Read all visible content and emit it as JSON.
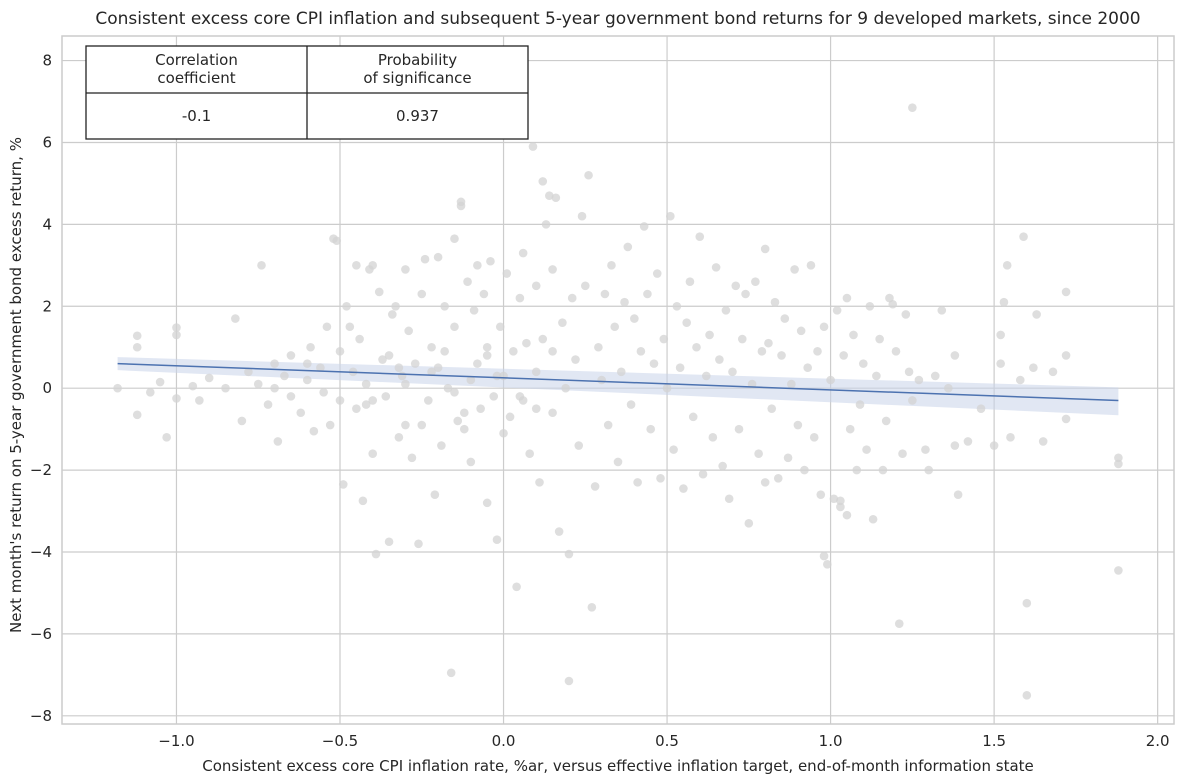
{
  "chart_data": {
    "type": "scatter",
    "title": "Consistent excess core CPI inflation and subsequent 5-year government bond returns for 9 developed markets, since 2000",
    "xlabel": "Consistent excess core CPI inflation rate, %ar, versus effective inflation target, end-of-month information state",
    "ylabel": "Next month's return on 5-year government bond excess return, %",
    "xlim": [
      -1.35,
      2.05
    ],
    "ylim": [
      -8.2,
      8.6
    ],
    "xticks": [
      -1.0,
      -0.5,
      0.0,
      0.5,
      1.0,
      1.5,
      2.0
    ],
    "xtick_labels": [
      "−1.0",
      "−0.5",
      "0.0",
      "0.5",
      "1.0",
      "1.5",
      "2.0"
    ],
    "yticks": [
      -8,
      -6,
      -4,
      -2,
      0,
      2,
      4,
      6,
      8
    ],
    "ytick_labels": [
      "−8",
      "−6",
      "−4",
      "−2",
      "0",
      "2",
      "4",
      "6",
      "8"
    ],
    "grid": true,
    "point_color": "#d3d3d3",
    "line_color": "#4c72b0",
    "ci_color": "#c8d4ea",
    "regression": {
      "x": [
        -1.18,
        1.88
      ],
      "y": [
        0.6,
        -0.3
      ],
      "ci_upper": [
        0.76,
        0.02
      ],
      "ci_lower": [
        0.44,
        -0.66
      ]
    },
    "stats_table": {
      "headers": [
        "Correlation\ncoefficient",
        "Probability\nof significance"
      ],
      "values": [
        "-0.1",
        "0.937"
      ]
    },
    "points": [
      [
        -1.18,
        0.0
      ],
      [
        -1.12,
        1.28
      ],
      [
        -1.12,
        1.0
      ],
      [
        -1.12,
        -0.65
      ],
      [
        -1.08,
        -0.1
      ],
      [
        -1.05,
        0.15
      ],
      [
        -1.03,
        -1.2
      ],
      [
        -1.0,
        1.48
      ],
      [
        -1.0,
        1.3
      ],
      [
        -1.0,
        -0.25
      ],
      [
        -0.95,
        0.05
      ],
      [
        -0.93,
        -0.3
      ],
      [
        -0.9,
        0.25
      ],
      [
        -0.85,
        0.0
      ],
      [
        -0.82,
        1.7
      ],
      [
        -0.8,
        -0.8
      ],
      [
        -0.78,
        0.4
      ],
      [
        -0.75,
        0.1
      ],
      [
        -0.74,
        3.0
      ],
      [
        -0.72,
        -0.4
      ],
      [
        -0.7,
        0.6
      ],
      [
        -0.69,
        -1.3
      ],
      [
        -0.67,
        0.3
      ],
      [
        -0.65,
        0.8
      ],
      [
        -0.62,
        -0.6
      ],
      [
        -0.6,
        0.2
      ],
      [
        -0.59,
        1.0
      ],
      [
        -0.58,
        -1.05
      ],
      [
        -0.56,
        0.5
      ],
      [
        -0.55,
        -0.1
      ],
      [
        -0.54,
        1.5
      ],
      [
        -0.53,
        -0.9
      ],
      [
        -0.52,
        3.65
      ],
      [
        -0.51,
        3.6
      ],
      [
        -0.5,
        0.9
      ],
      [
        -0.5,
        -0.3
      ],
      [
        -0.49,
        -2.35
      ],
      [
        -0.48,
        2.0
      ],
      [
        -0.47,
        1.5
      ],
      [
        -0.46,
        0.4
      ],
      [
        -0.45,
        3.0
      ],
      [
        -0.45,
        -0.5
      ],
      [
        -0.44,
        1.2
      ],
      [
        -0.43,
        -2.75
      ],
      [
        -0.42,
        0.1
      ],
      [
        -0.41,
        2.9
      ],
      [
        -0.4,
        3.0
      ],
      [
        -0.4,
        -1.6
      ],
      [
        -0.39,
        -4.05
      ],
      [
        -0.38,
        2.35
      ],
      [
        -0.37,
        0.7
      ],
      [
        -0.36,
        -0.2
      ],
      [
        -0.35,
        -3.75
      ],
      [
        -0.34,
        1.8
      ],
      [
        -0.33,
        2.0
      ],
      [
        -0.32,
        -1.2
      ],
      [
        -0.31,
        0.3
      ],
      [
        -0.3,
        -0.9
      ],
      [
        -0.3,
        2.9
      ],
      [
        -0.29,
        1.4
      ],
      [
        -0.28,
        -1.7
      ],
      [
        -0.27,
        0.6
      ],
      [
        -0.26,
        -3.8
      ],
      [
        -0.25,
        2.3
      ],
      [
        -0.24,
        3.15
      ],
      [
        -0.23,
        -0.3
      ],
      [
        -0.22,
        1.0
      ],
      [
        -0.21,
        -2.6
      ],
      [
        -0.2,
        3.2
      ],
      [
        -0.2,
        0.5
      ],
      [
        -0.19,
        -1.4
      ],
      [
        -0.18,
        2.0
      ],
      [
        -0.17,
        0.0
      ],
      [
        -0.16,
        -6.95
      ],
      [
        -0.15,
        3.65
      ],
      [
        -0.15,
        1.5
      ],
      [
        -0.14,
        -0.8
      ],
      [
        -0.13,
        4.55
      ],
      [
        -0.13,
        4.45
      ],
      [
        -0.12,
        -1.0
      ],
      [
        -0.11,
        2.6
      ],
      [
        -0.1,
        0.2
      ],
      [
        -0.1,
        -1.8
      ],
      [
        -0.09,
        1.9
      ],
      [
        -0.08,
        3.0
      ],
      [
        -0.07,
        -0.5
      ],
      [
        -0.06,
        2.3
      ],
      [
        -0.05,
        -2.8
      ],
      [
        -0.05,
        0.8
      ],
      [
        -0.04,
        3.1
      ],
      [
        -0.03,
        -0.2
      ],
      [
        -0.02,
        -3.7
      ],
      [
        -0.01,
        1.5
      ],
      [
        0.0,
        0.3
      ],
      [
        0.0,
        -1.1
      ],
      [
        0.01,
        2.8
      ],
      [
        0.02,
        -0.7
      ],
      [
        0.03,
        0.9
      ],
      [
        0.04,
        -4.85
      ],
      [
        0.05,
        2.2
      ],
      [
        0.06,
        3.3
      ],
      [
        0.06,
        -0.3
      ],
      [
        0.07,
        1.1
      ],
      [
        0.08,
        -1.6
      ],
      [
        0.09,
        5.9
      ],
      [
        0.1,
        0.4
      ],
      [
        0.1,
        2.5
      ],
      [
        0.11,
        -2.3
      ],
      [
        0.12,
        5.05
      ],
      [
        0.12,
        1.2
      ],
      [
        0.13,
        4.0
      ],
      [
        0.14,
        4.7
      ],
      [
        0.15,
        -0.6
      ],
      [
        0.15,
        2.9
      ],
      [
        0.16,
        4.65
      ],
      [
        0.17,
        -3.5
      ],
      [
        0.18,
        1.6
      ],
      [
        0.19,
        0.0
      ],
      [
        0.2,
        -4.05
      ],
      [
        0.2,
        -7.15
      ],
      [
        0.21,
        2.2
      ],
      [
        0.22,
        0.7
      ],
      [
        0.23,
        -1.4
      ],
      [
        0.24,
        4.2
      ],
      [
        0.25,
        2.5
      ],
      [
        0.26,
        5.2
      ],
      [
        0.27,
        -5.35
      ],
      [
        0.28,
        -2.4
      ],
      [
        0.29,
        1.0
      ],
      [
        0.3,
        0.2
      ],
      [
        0.31,
        2.3
      ],
      [
        0.32,
        -0.9
      ],
      [
        0.33,
        3.0
      ],
      [
        0.34,
        1.5
      ],
      [
        0.35,
        -1.8
      ],
      [
        0.36,
        0.4
      ],
      [
        0.37,
        2.1
      ],
      [
        0.38,
        3.45
      ],
      [
        0.39,
        -0.4
      ],
      [
        0.4,
        1.7
      ],
      [
        0.41,
        -2.3
      ],
      [
        0.42,
        0.9
      ],
      [
        0.43,
        3.95
      ],
      [
        0.44,
        2.3
      ],
      [
        0.45,
        -1.0
      ],
      [
        0.46,
        0.6
      ],
      [
        0.47,
        2.8
      ],
      [
        0.48,
        -2.2
      ],
      [
        0.49,
        1.2
      ],
      [
        0.5,
        0.0
      ],
      [
        0.51,
        4.2
      ],
      [
        0.52,
        -1.5
      ],
      [
        0.53,
        2.0
      ],
      [
        0.54,
        0.5
      ],
      [
        0.55,
        -2.45
      ],
      [
        0.56,
        1.6
      ],
      [
        0.57,
        2.6
      ],
      [
        0.58,
        -0.7
      ],
      [
        0.59,
        1.0
      ],
      [
        0.6,
        3.7
      ],
      [
        0.61,
        -2.1
      ],
      [
        0.62,
        0.3
      ],
      [
        0.63,
        1.3
      ],
      [
        0.64,
        -1.2
      ],
      [
        0.65,
        2.95
      ],
      [
        0.66,
        0.7
      ],
      [
        0.67,
        -1.9
      ],
      [
        0.68,
        1.9
      ],
      [
        0.69,
        -2.7
      ],
      [
        0.7,
        0.4
      ],
      [
        0.71,
        2.5
      ],
      [
        0.72,
        -1.0
      ],
      [
        0.73,
        1.2
      ],
      [
        0.74,
        2.3
      ],
      [
        0.75,
        -3.3
      ],
      [
        0.76,
        0.1
      ],
      [
        0.77,
        2.6
      ],
      [
        0.78,
        -1.6
      ],
      [
        0.79,
        0.9
      ],
      [
        0.8,
        3.4
      ],
      [
        0.8,
        -2.3
      ],
      [
        0.81,
        1.1
      ],
      [
        0.82,
        -0.5
      ],
      [
        0.83,
        2.1
      ],
      [
        0.84,
        -2.2
      ],
      [
        0.85,
        0.8
      ],
      [
        0.86,
        1.7
      ],
      [
        0.87,
        -1.7
      ],
      [
        0.88,
        0.1
      ],
      [
        0.89,
        2.9
      ],
      [
        0.9,
        -0.9
      ],
      [
        0.91,
        1.4
      ],
      [
        0.92,
        -2.0
      ],
      [
        0.93,
        0.5
      ],
      [
        0.94,
        3.0
      ],
      [
        0.95,
        -1.2
      ],
      [
        0.96,
        0.9
      ],
      [
        0.97,
        -2.6
      ],
      [
        0.98,
        1.5
      ],
      [
        0.98,
        -4.1
      ],
      [
        0.99,
        -4.3
      ],
      [
        1.0,
        0.2
      ],
      [
        1.01,
        -2.7
      ],
      [
        1.02,
        1.9
      ],
      [
        1.03,
        -2.75
      ],
      [
        1.03,
        -2.9
      ],
      [
        1.04,
        0.8
      ],
      [
        1.05,
        -3.1
      ],
      [
        1.05,
        2.2
      ],
      [
        1.06,
        -1.0
      ],
      [
        1.07,
        1.3
      ],
      [
        1.08,
        -2.0
      ],
      [
        1.09,
        -0.4
      ],
      [
        1.1,
        0.6
      ],
      [
        1.11,
        -1.5
      ],
      [
        1.12,
        2.0
      ],
      [
        1.13,
        -3.2
      ],
      [
        1.14,
        0.3
      ],
      [
        1.15,
        1.2
      ],
      [
        1.16,
        -2.0
      ],
      [
        1.17,
        -0.8
      ],
      [
        1.18,
        2.2
      ],
      [
        1.19,
        2.05
      ],
      [
        1.2,
        0.9
      ],
      [
        1.21,
        -5.75
      ],
      [
        1.22,
        -1.6
      ],
      [
        1.23,
        1.8
      ],
      [
        1.24,
        0.4
      ],
      [
        1.25,
        -0.3
      ],
      [
        1.25,
        6.85
      ],
      [
        1.27,
        0.2
      ],
      [
        1.29,
        -1.5
      ],
      [
        1.3,
        -2.0
      ],
      [
        1.32,
        0.3
      ],
      [
        1.34,
        1.9
      ],
      [
        1.36,
        0.0
      ],
      [
        1.38,
        -1.4
      ],
      [
        1.38,
        0.8
      ],
      [
        1.39,
        -2.6
      ],
      [
        1.42,
        -1.3
      ],
      [
        1.46,
        -0.5
      ],
      [
        1.5,
        -1.4
      ],
      [
        1.52,
        0.6
      ],
      [
        1.52,
        1.3
      ],
      [
        1.53,
        2.1
      ],
      [
        1.54,
        3.0
      ],
      [
        1.55,
        -1.2
      ],
      [
        1.58,
        0.2
      ],
      [
        1.59,
        3.7
      ],
      [
        1.6,
        -7.5
      ],
      [
        1.6,
        -5.25
      ],
      [
        1.62,
        0.5
      ],
      [
        1.63,
        1.8
      ],
      [
        1.65,
        -1.3
      ],
      [
        1.68,
        0.4
      ],
      [
        1.72,
        0.8
      ],
      [
        1.72,
        2.35
      ],
      [
        1.72,
        -0.75
      ],
      [
        1.88,
        -1.7
      ],
      [
        1.88,
        -1.85
      ],
      [
        1.88,
        -4.45
      ],
      [
        -0.02,
        0.3
      ],
      [
        -0.08,
        0.6
      ],
      [
        -0.15,
        -0.1
      ],
      [
        -0.22,
        0.4
      ],
      [
        -0.3,
        0.1
      ],
      [
        -0.35,
        0.8
      ],
      [
        -0.42,
        -0.4
      ],
      [
        -0.05,
        1.0
      ],
      [
        0.05,
        -0.2
      ],
      [
        -0.12,
        -0.6
      ],
      [
        -0.18,
        0.9
      ],
      [
        -0.25,
        -0.9
      ],
      [
        -0.32,
        0.5
      ],
      [
        -0.4,
        -0.3
      ],
      [
        0.1,
        -0.5
      ],
      [
        0.15,
        0.9
      ],
      [
        -0.6,
        0.6
      ],
      [
        -0.65,
        -0.2
      ],
      [
        -0.7,
        0.0
      ]
    ]
  }
}
